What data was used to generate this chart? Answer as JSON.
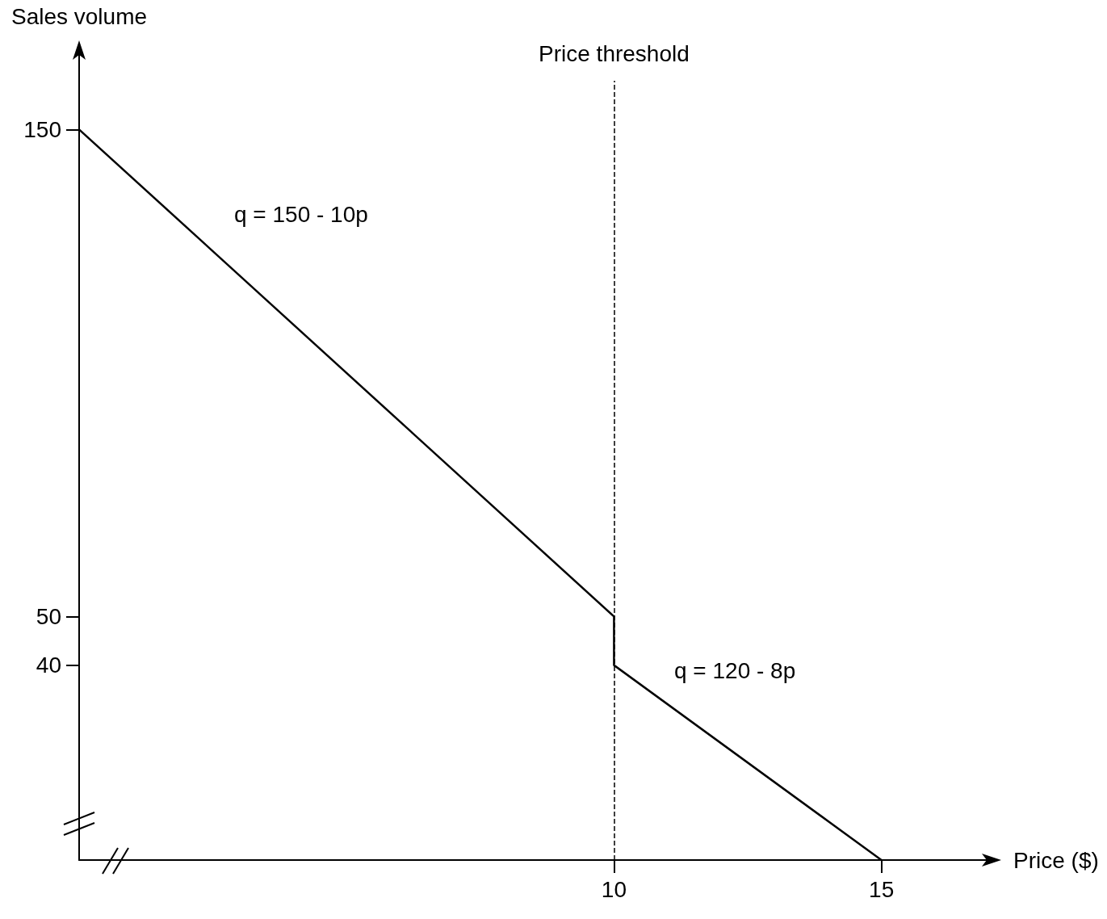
{
  "chart_data": {
    "type": "line",
    "xlabel": "Price ($)",
    "ylabel": "Sales volume",
    "series": [
      {
        "x": [
          0,
          10,
          10,
          15
        ],
        "values": [
          150,
          50,
          40,
          0
        ],
        "color": "#000000"
      }
    ],
    "xlim": [
      0,
      16.5
    ],
    "ylim": [
      0,
      160
    ],
    "xticks": [
      10,
      15
    ],
    "yticks": [
      40,
      50,
      150
    ],
    "ref_lines": [
      {
        "axis": "x",
        "value": 10,
        "label": "Price threshold",
        "line_style": "dashed",
        "color": "#000000"
      }
    ],
    "annotations": [
      "q = 150 - 10p",
      "q = 120 - 8p"
    ],
    "grid": false,
    "marker": "none",
    "line_style": "solid"
  }
}
